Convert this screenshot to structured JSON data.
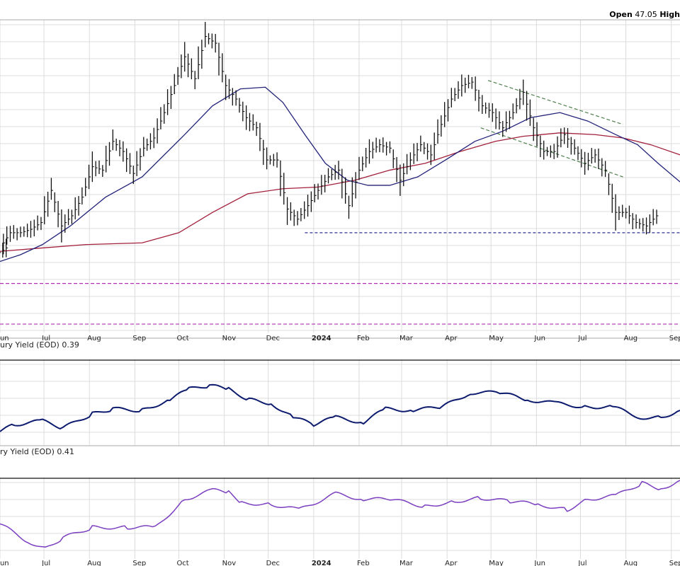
{
  "header": {
    "open_label": "Open",
    "open_value": "47.05",
    "high_label": "High"
  },
  "panels": {
    "yield_panel_1_label": "ury Yield (EOD) 0.39",
    "yield_panel_2_label": "ry Yield (EOD) 0.41"
  },
  "colors": {
    "price_bars": "#111111",
    "ma_short": "#23237a",
    "ma_long": "#a3203c",
    "channel": "#4f7f4f",
    "support": "#1a1a8a",
    "level": "#b030b0",
    "yield_1": "#0d1b6e",
    "yield_2": "#7b3fc0",
    "grid": "#dcdcdc"
  },
  "x_axis": {
    "months": [
      {
        "date": "2023-06-01",
        "label": "Jun",
        "bold": false
      },
      {
        "date": "2023-07-01",
        "label": "Jul",
        "bold": false
      },
      {
        "date": "2023-08-01",
        "label": "Aug",
        "bold": false
      },
      {
        "date": "2023-09-01",
        "label": "Sep",
        "bold": false
      },
      {
        "date": "2023-10-01",
        "label": "Oct",
        "bold": false
      },
      {
        "date": "2023-11-01",
        "label": "Nov",
        "bold": false
      },
      {
        "date": "2023-12-01",
        "label": "Dec",
        "bold": false
      },
      {
        "date": "2024-01-01",
        "label": "2024",
        "bold": true
      },
      {
        "date": "2024-02-01",
        "label": "Feb",
        "bold": false
      },
      {
        "date": "2024-03-01",
        "label": "Mar",
        "bold": false
      },
      {
        "date": "2024-04-01",
        "label": "Apr",
        "bold": false
      },
      {
        "date": "2024-05-01",
        "label": "May",
        "bold": false
      },
      {
        "date": "2024-06-01",
        "label": "Jun",
        "bold": false
      },
      {
        "date": "2024-07-01",
        "label": "Jul",
        "bold": false
      },
      {
        "date": "2024-08-01",
        "label": "Aug",
        "bold": false
      },
      {
        "date": "2024-09-01",
        "label": "Sep",
        "bold": false
      }
    ],
    "range": [
      "2023-06-01",
      "2024-09-05"
    ]
  },
  "chart_data": [
    {
      "type": "bar",
      "subtype": "ohlc-price",
      "ylim": [
        40.3,
        58.7
      ],
      "grid": true,
      "dates": [
        "2023-06-01",
        "2023-06-08",
        "2023-06-15",
        "2023-06-22",
        "2023-06-29",
        "2023-07-06",
        "2023-07-13",
        "2023-07-20",
        "2023-07-27",
        "2023-08-03",
        "2023-08-10",
        "2023-08-17",
        "2023-08-24",
        "2023-08-31",
        "2023-09-07",
        "2023-09-14",
        "2023-09-21",
        "2023-09-28",
        "2023-10-05",
        "2023-10-12",
        "2023-10-19",
        "2023-10-26",
        "2023-11-02",
        "2023-11-09",
        "2023-11-16",
        "2023-11-23",
        "2023-11-30",
        "2023-12-07",
        "2023-12-14",
        "2023-12-21",
        "2023-12-28",
        "2024-01-04",
        "2024-01-11",
        "2024-01-18",
        "2024-01-25",
        "2024-02-01",
        "2024-02-08",
        "2024-02-15",
        "2024-02-22",
        "2024-02-29",
        "2024-03-07",
        "2024-03-14",
        "2024-03-21",
        "2024-03-28",
        "2024-04-04",
        "2024-04-11",
        "2024-04-18",
        "2024-04-25",
        "2024-05-02",
        "2024-05-09",
        "2024-05-16",
        "2024-05-23",
        "2024-05-30",
        "2024-06-06",
        "2024-06-13",
        "2024-06-20",
        "2024-06-27",
        "2024-07-04",
        "2024-07-11",
        "2024-07-18",
        "2024-07-25",
        "2024-08-01",
        "2024-08-08",
        "2024-08-15",
        "2024-08-22"
      ],
      "close": [
        45.3,
        46.2,
        46.2,
        46.4,
        46.8,
        48.7,
        46.6,
        47.2,
        48.3,
        50.1,
        49.9,
        51.6,
        51.0,
        49.7,
        51.2,
        51.8,
        53.3,
        54.9,
        56.6,
        55.3,
        57.8,
        57.4,
        54.9,
        54.1,
        53.0,
        52.4,
        50.5,
        50.5,
        47.6,
        47.0,
        47.8,
        48.7,
        49.5,
        49.9,
        47.8,
        49.9,
        51.0,
        51.4,
        51.2,
        49.3,
        50.5,
        51.4,
        50.8,
        52.6,
        54.1,
        54.9,
        55.1,
        53.7,
        53.3,
        52.4,
        53.3,
        54.5,
        52.4,
        51.0,
        51.0,
        52.0,
        51.2,
        50.3,
        50.8,
        49.9,
        47.4,
        47.4,
        46.8,
        46.6,
        47.2
      ],
      "overlays": {
        "ma_short": [
          [
            "2023-06-01",
            44.5
          ],
          [
            "2023-06-15",
            44.9
          ],
          [
            "2023-06-30",
            45.5
          ],
          [
            "2023-07-19",
            46.6
          ],
          [
            "2023-08-12",
            48.3
          ],
          [
            "2023-09-06",
            49.5
          ],
          [
            "2023-10-05",
            52.0
          ],
          [
            "2023-10-24",
            53.7
          ],
          [
            "2023-11-12",
            54.7
          ],
          [
            "2023-11-29",
            54.8
          ],
          [
            "2023-12-11",
            53.9
          ],
          [
            "2023-12-26",
            52.0
          ],
          [
            "2024-01-09",
            50.3
          ],
          [
            "2024-01-24",
            49.3
          ],
          [
            "2024-02-07",
            49.0
          ],
          [
            "2024-02-22",
            49.0
          ],
          [
            "2024-03-12",
            49.5
          ],
          [
            "2024-03-31",
            50.5
          ],
          [
            "2024-04-20",
            51.6
          ],
          [
            "2024-05-09",
            52.2
          ],
          [
            "2024-05-28",
            53.0
          ],
          [
            "2024-06-17",
            53.3
          ],
          [
            "2024-07-06",
            52.8
          ],
          [
            "2024-07-25",
            52.0
          ],
          [
            "2024-08-09",
            51.4
          ],
          [
            "2024-08-23",
            50.3
          ],
          [
            "2024-09-07",
            49.2
          ]
        ],
        "ma_long": [
          [
            "2023-06-01",
            45.1
          ],
          [
            "2023-06-30",
            45.3
          ],
          [
            "2023-07-30",
            45.5
          ],
          [
            "2023-09-06",
            45.6
          ],
          [
            "2023-10-01",
            46.2
          ],
          [
            "2023-10-24",
            47.4
          ],
          [
            "2023-11-17",
            48.5
          ],
          [
            "2023-12-11",
            48.8
          ],
          [
            "2024-01-04",
            48.9
          ],
          [
            "2024-01-29",
            49.3
          ],
          [
            "2024-02-22",
            49.9
          ],
          [
            "2024-03-17",
            50.3
          ],
          [
            "2024-04-10",
            51.0
          ],
          [
            "2024-05-04",
            51.6
          ],
          [
            "2024-05-23",
            51.9
          ],
          [
            "2024-06-17",
            52.1
          ],
          [
            "2024-07-11",
            52.0
          ],
          [
            "2024-07-30",
            51.8
          ],
          [
            "2024-08-18",
            51.4
          ],
          [
            "2024-09-07",
            50.8
          ]
        ],
        "channel_upper": [
          [
            "2024-04-29",
            55.2
          ],
          [
            "2024-07-30",
            52.6
          ]
        ],
        "channel_lower": [
          [
            "2024-04-24",
            52.4
          ],
          [
            "2024-07-30",
            49.5
          ]
        ],
        "support_line": [
          [
            "2023-12-26",
            46.2
          ],
          [
            "2024-09-07",
            46.2
          ]
        ],
        "levels": [
          43.2,
          40.8
        ]
      }
    },
    {
      "type": "line",
      "name": "ury Yield (EOD) 0.39",
      "ylim": [
        0.34,
        0.46
      ],
      "grid": true,
      "points": [
        [
          "2023-06-01",
          0.36
        ],
        [
          "2023-06-11",
          0.37
        ],
        [
          "2023-06-30",
          0.375
        ],
        [
          "2023-07-14",
          0.365
        ],
        [
          "2023-08-03",
          0.385
        ],
        [
          "2023-08-17",
          0.392
        ],
        [
          "2023-09-06",
          0.39
        ],
        [
          "2023-09-25",
          0.405
        ],
        [
          "2023-10-08",
          0.42
        ],
        [
          "2023-10-22",
          0.425
        ],
        [
          "2023-11-04",
          0.42
        ],
        [
          "2023-11-18",
          0.405
        ],
        [
          "2023-12-03",
          0.4
        ],
        [
          "2023-12-18",
          0.38
        ],
        [
          "2024-01-01",
          0.37
        ],
        [
          "2024-01-16",
          0.38
        ],
        [
          "2024-02-04",
          0.373
        ],
        [
          "2024-02-19",
          0.392
        ],
        [
          "2024-03-09",
          0.39
        ],
        [
          "2024-03-29",
          0.395
        ],
        [
          "2024-04-17",
          0.415
        ],
        [
          "2024-05-07",
          0.415
        ],
        [
          "2024-05-26",
          0.405
        ],
        [
          "2024-06-14",
          0.4
        ],
        [
          "2024-07-04",
          0.395
        ],
        [
          "2024-07-23",
          0.395
        ],
        [
          "2024-08-11",
          0.38
        ],
        [
          "2024-08-25",
          0.38
        ],
        [
          "2024-09-07",
          0.39
        ]
      ]
    },
    {
      "type": "line",
      "name": "ry Yield (EOD) 0.41",
      "ylim": [
        0.298,
        0.412
      ],
      "grid": true,
      "points": [
        [
          "2023-06-01",
          0.348
        ],
        [
          "2023-06-20",
          0.323
        ],
        [
          "2023-07-02",
          0.313
        ],
        [
          "2023-07-14",
          0.328
        ],
        [
          "2023-08-03",
          0.343
        ],
        [
          "2023-08-27",
          0.343
        ],
        [
          "2023-09-15",
          0.343
        ],
        [
          "2023-10-05",
          0.383
        ],
        [
          "2023-10-24",
          0.396
        ],
        [
          "2023-11-04",
          0.393
        ],
        [
          "2023-11-13",
          0.378
        ],
        [
          "2023-12-03",
          0.376
        ],
        [
          "2023-12-22",
          0.368
        ],
        [
          "2024-01-16",
          0.391
        ],
        [
          "2024-02-04",
          0.383
        ],
        [
          "2024-02-22",
          0.383
        ],
        [
          "2024-03-17",
          0.373
        ],
        [
          "2024-04-06",
          0.38
        ],
        [
          "2024-04-24",
          0.385
        ],
        [
          "2024-05-14",
          0.38
        ],
        [
          "2024-06-02",
          0.376
        ],
        [
          "2024-06-22",
          0.368
        ],
        [
          "2024-07-06",
          0.383
        ],
        [
          "2024-07-25",
          0.388
        ],
        [
          "2024-08-12",
          0.406
        ],
        [
          "2024-08-25",
          0.398
        ],
        [
          "2024-09-07",
          0.41
        ]
      ]
    }
  ]
}
